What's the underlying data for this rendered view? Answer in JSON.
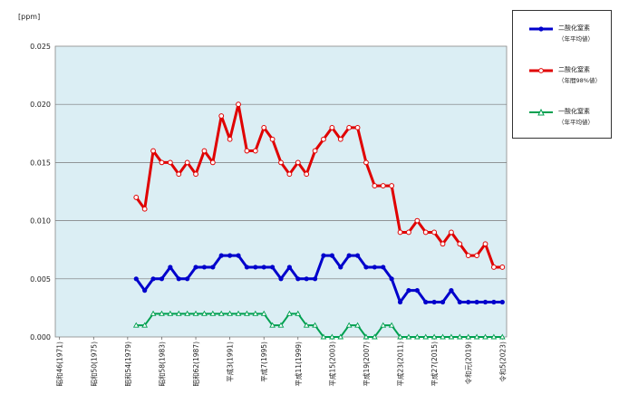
{
  "chart_data": {
    "type": "line",
    "ylabel": "[ppm]",
    "ylim": [
      0,
      0.025
    ],
    "yticks": [
      "0.000",
      "0.005",
      "0.010",
      "0.015",
      "0.020",
      "0.025"
    ],
    "grid": true,
    "legend_position": "right",
    "x_tick_labels": [
      {
        "year": 1971,
        "label": "昭和46(1971)"
      },
      {
        "year": 1975,
        "label": "昭和50(1975)"
      },
      {
        "year": 1979,
        "label": "昭和54(1979)"
      },
      {
        "year": 1983,
        "label": "昭和58(1983)"
      },
      {
        "year": 1987,
        "label": "昭和62(1987)"
      },
      {
        "year": 1991,
        "label": "平成3(1991)"
      },
      {
        "year": 1995,
        "label": "平成7(1995)"
      },
      {
        "year": 1999,
        "label": "平成11(1999)"
      },
      {
        "year": 2003,
        "label": "平成15(2003)"
      },
      {
        "year": 2007,
        "label": "平成19(2007)"
      },
      {
        "year": 2011,
        "label": "平成23(2011)"
      },
      {
        "year": 2015,
        "label": "平成27(2015)"
      },
      {
        "year": 2019,
        "label": "令和元(2019)"
      },
      {
        "year": 2023,
        "label": "令和5(2023)"
      }
    ],
    "x": [
      1980,
      1981,
      1982,
      1983,
      1984,
      1985,
      1986,
      1987,
      1988,
      1989,
      1990,
      1991,
      1992,
      1993,
      1994,
      1995,
      1996,
      1997,
      1998,
      1999,
      2000,
      2001,
      2002,
      2003,
      2004,
      2005,
      2006,
      2007,
      2008,
      2009,
      2010,
      2011,
      2012,
      2013,
      2014,
      2015,
      2016,
      2017,
      2018,
      2019,
      2020,
      2021,
      2022,
      2023
    ],
    "series": [
      {
        "legend_name": "二酸化窒素",
        "legend_sub": "（年平均値）",
        "color": "#0000cc",
        "marker": "filled",
        "values": [
          0.005,
          0.004,
          0.005,
          0.005,
          0.006,
          0.005,
          0.005,
          0.006,
          0.006,
          0.006,
          0.007,
          0.007,
          0.007,
          0.006,
          0.006,
          0.006,
          0.006,
          0.005,
          0.006,
          0.005,
          0.005,
          0.005,
          0.007,
          0.007,
          0.006,
          0.007,
          0.007,
          0.006,
          0.006,
          0.006,
          0.005,
          0.003,
          0.004,
          0.004,
          0.003,
          0.003,
          0.003,
          0.004,
          0.003,
          0.003,
          0.003,
          0.003,
          0.003,
          0.003
        ]
      },
      {
        "legend_name": "二酸化窒素",
        "legend_sub": "（年間98%値）",
        "color": "#e00000",
        "marker": "hollow",
        "values": [
          0.012,
          0.011,
          0.016,
          0.015,
          0.015,
          0.014,
          0.015,
          0.014,
          0.016,
          0.015,
          0.019,
          0.017,
          0.02,
          0.016,
          0.016,
          0.018,
          0.017,
          0.015,
          0.014,
          0.015,
          0.014,
          0.016,
          0.017,
          0.018,
          0.017,
          0.018,
          0.018,
          0.015,
          0.013,
          0.013,
          0.013,
          0.009,
          0.009,
          0.01,
          0.009,
          0.009,
          0.008,
          0.009,
          0.008,
          0.007,
          0.007,
          0.008,
          0.006,
          0.006
        ]
      },
      {
        "legend_name": "一酸化窒素",
        "legend_sub": "（年平均値）",
        "color": "#00a050",
        "marker": "triangle",
        "values": [
          0.001,
          0.001,
          0.002,
          0.002,
          0.002,
          0.002,
          0.002,
          0.002,
          0.002,
          0.002,
          0.002,
          0.002,
          0.002,
          0.002,
          0.002,
          0.002,
          0.001,
          0.001,
          0.002,
          0.002,
          0.001,
          0.001,
          0.0,
          0.0,
          0.0,
          0.001,
          0.001,
          0.0,
          0.0,
          0.001,
          0.001,
          0.0,
          0.0,
          0.0,
          0.0,
          0.0,
          0.0,
          0.0,
          0.0,
          0.0,
          0.0,
          0.0,
          0.0,
          0.0
        ]
      }
    ]
  }
}
